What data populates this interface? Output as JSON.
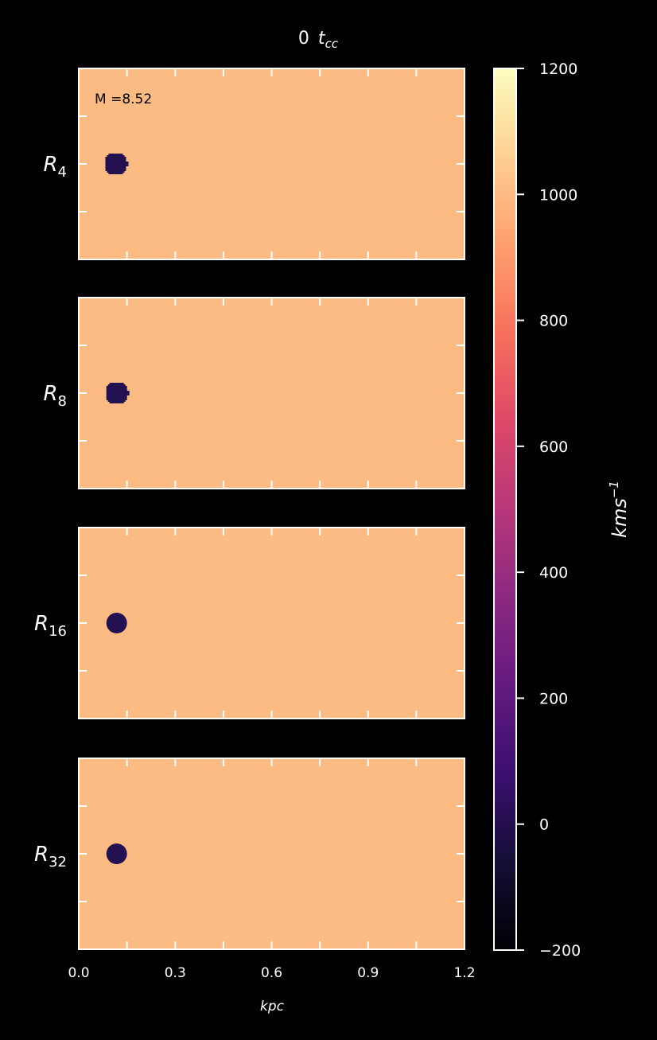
{
  "figure": {
    "title_main": "0",
    "title_italic": "t",
    "title_sub": "cc",
    "annotation": "M =8.52",
    "xlabel": "kpc"
  },
  "colors": {
    "background": "#000000",
    "panel_fill": "#fcbb83",
    "cloud_fill": "#231151",
    "axis_color": "#ffffff",
    "colormap": "magma"
  },
  "chart_data": {
    "type": "heatmap",
    "xlim": [
      0.0,
      1.2
    ],
    "xticks": [
      "0.0",
      "0.3",
      "0.6",
      "0.9",
      "1.2"
    ],
    "panels": [
      {
        "row_label": "R",
        "row_sub": "4",
        "cloud_x_kpc": 0.115,
        "cloud_pixelated": true
      },
      {
        "row_label": "R",
        "row_sub": "8",
        "cloud_x_kpc": 0.118,
        "cloud_pixelated": true
      },
      {
        "row_label": "R",
        "row_sub": "16",
        "cloud_x_kpc": 0.118,
        "cloud_pixelated": false
      },
      {
        "row_label": "R",
        "row_sub": "32",
        "cloud_x_kpc": 0.118,
        "cloud_pixelated": false
      }
    ],
    "colorbar": {
      "label": "kms",
      "label_sup": "−1",
      "range": [
        -200,
        1200
      ],
      "ticks": [
        "1200",
        "1000",
        "800",
        "600",
        "400",
        "200",
        "0",
        "−200"
      ],
      "tick_values": [
        1200,
        1000,
        800,
        600,
        400,
        200,
        0,
        -200
      ],
      "colormap": "magma"
    }
  }
}
